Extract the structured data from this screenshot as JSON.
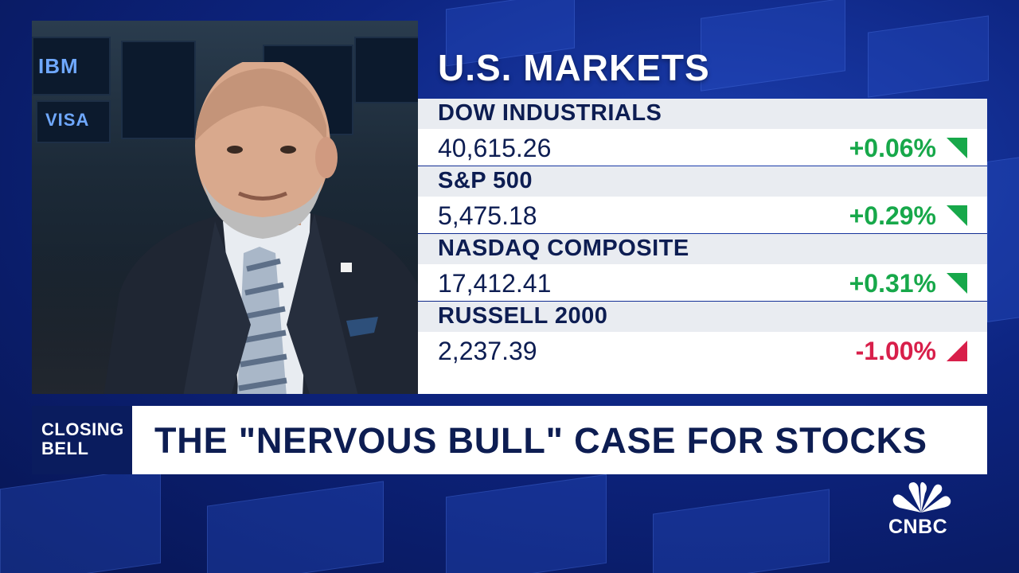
{
  "markets": {
    "title": "U.S. MARKETS",
    "indices": [
      {
        "name": "DOW INDUSTRIALS",
        "value": "40,615.26",
        "change": "+0.06%",
        "direction": "up"
      },
      {
        "name": "S&P 500",
        "value": "5,475.18",
        "change": "+0.29%",
        "direction": "up"
      },
      {
        "name": "NASDAQ COMPOSITE",
        "value": "17,412.41",
        "change": "+0.31%",
        "direction": "up"
      },
      {
        "name": "RUSSELL 2000",
        "value": "2,237.39",
        "change": "-1.00%",
        "direction": "down"
      }
    ]
  },
  "lower_third": {
    "tag_line1": "CLOSING",
    "tag_line2": "BELL",
    "headline": "THE \"NERVOUS BULL\" CASE FOR STOCKS"
  },
  "background_screens": {
    "screen1": "IBM",
    "screen2": "VISA"
  },
  "logo": {
    "text": "CNBC"
  },
  "colors": {
    "up": "#17a84a",
    "down": "#d81f4a",
    "navy": "#0d1d52",
    "background": "#0d2480"
  },
  "icons": {
    "up": "triangle-up-icon",
    "down": "triangle-down-icon",
    "logo": "peacock-icon"
  }
}
